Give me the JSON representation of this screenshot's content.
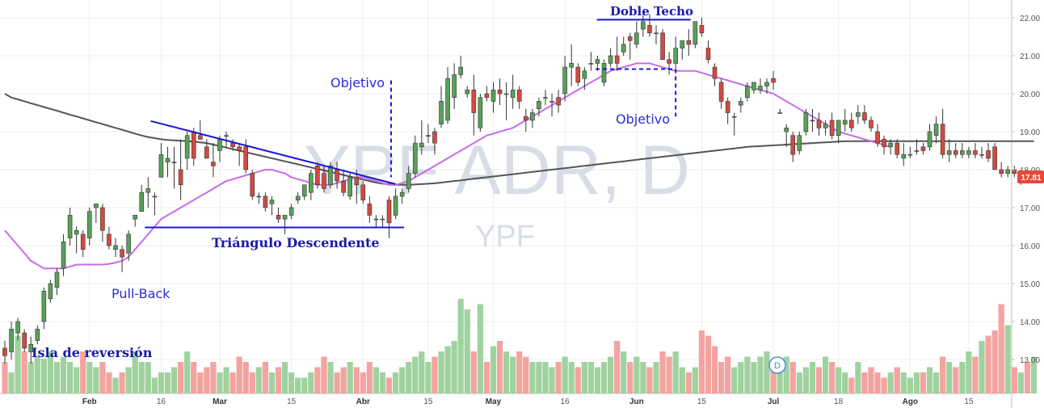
{
  "chart_data": {
    "type": "candlestick",
    "symbol_watermark": "YPF ADR, D",
    "exchange_watermark": "YPF",
    "y_axis": {
      "ticks": [
        "22.00",
        "21.00",
        "20.00",
        "19.00",
        "18.00",
        "17.00",
        "16.00",
        "15.00",
        "14.00",
        "13.00"
      ],
      "range": [
        12.2,
        22.3
      ]
    },
    "x_axis": {
      "labels": [
        {
          "text": "Feb",
          "i": 13,
          "bold": true
        },
        {
          "text": "16",
          "i": 24,
          "bold": false
        },
        {
          "text": "Mar",
          "i": 33,
          "bold": true
        },
        {
          "text": "15",
          "i": 44,
          "bold": false
        },
        {
          "text": "Abr",
          "i": 55,
          "bold": true
        },
        {
          "text": "15",
          "i": 65,
          "bold": false
        },
        {
          "text": "May",
          "i": 75,
          "bold": true
        },
        {
          "text": "16",
          "i": 86,
          "bold": false
        },
        {
          "text": "Jun",
          "i": 97,
          "bold": true
        },
        {
          "text": "15",
          "i": 107,
          "bold": false
        },
        {
          "text": "Jul",
          "i": 118,
          "bold": true
        },
        {
          "text": "18",
          "i": 128,
          "bold": false
        },
        {
          "text": "Ago",
          "i": 139,
          "bold": true
        },
        {
          "text": "15",
          "i": 148,
          "bold": false
        }
      ]
    },
    "last_price": "17.81",
    "candles": [
      [
        13.3,
        13.5,
        12.9,
        13.1
      ],
      [
        13.2,
        14.0,
        13.0,
        13.8
      ],
      [
        13.7,
        14.1,
        13.5,
        14.0
      ],
      [
        13.7,
        13.8,
        13.2,
        13.3
      ],
      [
        13.2,
        13.6,
        12.9,
        13.4
      ],
      [
        13.5,
        13.9,
        13.4,
        13.8
      ],
      [
        14.0,
        14.9,
        13.8,
        14.8
      ],
      [
        14.6,
        15.1,
        14.5,
        15.0
      ],
      [
        14.9,
        15.4,
        14.7,
        15.3
      ],
      [
        15.4,
        16.3,
        15.2,
        16.1
      ],
      [
        16.2,
        17.0,
        16.0,
        16.8
      ],
      [
        16.3,
        16.5,
        15.8,
        16.4
      ],
      [
        16.3,
        16.4,
        15.7,
        15.9
      ],
      [
        16.2,
        17.0,
        16.0,
        16.9
      ],
      [
        17.0,
        17.1,
        16.6,
        17.1
      ],
      [
        17.0,
        17.1,
        16.1,
        16.4
      ],
      [
        16.3,
        16.5,
        15.9,
        16.0
      ],
      [
        15.9,
        16.2,
        15.7,
        16.0
      ],
      [
        15.9,
        16.0,
        15.3,
        15.7
      ],
      [
        15.8,
        16.4,
        15.6,
        16.3
      ],
      [
        16.7,
        16.8,
        16.5,
        16.8
      ],
      [
        16.9,
        17.6,
        16.9,
        17.4
      ],
      [
        17.4,
        17.8,
        17.0,
        17.5
      ],
      [
        17.3,
        17.4,
        16.8,
        17.3
      ],
      [
        17.8,
        18.7,
        17.8,
        18.4
      ],
      [
        18.2,
        18.6,
        17.8,
        18.3
      ],
      [
        18.2,
        18.6,
        17.5,
        18.2
      ],
      [
        18.0,
        18.8,
        17.2,
        17.6
      ],
      [
        18.3,
        19.0,
        18.0,
        18.9
      ],
      [
        19.0,
        19.1,
        18.1,
        18.3
      ],
      [
        18.9,
        19.3,
        18.8,
        18.8
      ],
      [
        18.6,
        18.8,
        18.3,
        18.3
      ],
      [
        18.2,
        18.7,
        17.8,
        18.1
      ],
      [
        18.5,
        18.9,
        18.2,
        18.8
      ],
      [
        18.9,
        19.0,
        18.6,
        18.9
      ],
      [
        18.7,
        18.8,
        18.5,
        18.6
      ],
      [
        18.6,
        18.7,
        18.1,
        18.5
      ],
      [
        18.6,
        18.8,
        17.9,
        18.0
      ],
      [
        17.9,
        18.0,
        17.2,
        17.3
      ],
      [
        17.3,
        17.4,
        17.1,
        17.3
      ],
      [
        17.3,
        17.4,
        16.9,
        17.0
      ],
      [
        17.1,
        17.3,
        16.8,
        17.2
      ],
      [
        16.8,
        17.0,
        16.6,
        16.7
      ],
      [
        16.7,
        16.8,
        16.3,
        16.8
      ],
      [
        16.8,
        17.1,
        16.7,
        17.0
      ],
      [
        17.2,
        17.4,
        17.1,
        17.3
      ],
      [
        17.3,
        17.6,
        17.2,
        17.6
      ],
      [
        17.4,
        18.0,
        17.2,
        17.9
      ],
      [
        18.1,
        18.2,
        17.5,
        17.6
      ],
      [
        17.9,
        18.1,
        17.4,
        17.5
      ],
      [
        17.6,
        18.2,
        17.5,
        18.1
      ],
      [
        18.0,
        18.2,
        17.5,
        17.7
      ],
      [
        17.7,
        18.0,
        17.3,
        17.4
      ],
      [
        17.3,
        17.9,
        17.2,
        17.8
      ],
      [
        17.8,
        18.0,
        17.1,
        17.6
      ],
      [
        17.6,
        17.7,
        17.1,
        17.2
      ],
      [
        17.1,
        17.3,
        16.6,
        16.8
      ],
      [
        16.7,
        16.8,
        16.5,
        16.7
      ],
      [
        16.7,
        16.8,
        16.5,
        16.7
      ],
      [
        17.2,
        17.3,
        16.2,
        16.6
      ],
      [
        16.8,
        17.5,
        16.7,
        17.3
      ],
      [
        17.3,
        17.5,
        17.1,
        17.4
      ],
      [
        17.5,
        18.1,
        17.4,
        17.9
      ],
      [
        17.9,
        18.9,
        17.8,
        18.7
      ],
      [
        18.6,
        19.3,
        18.4,
        18.7
      ],
      [
        18.9,
        19.2,
        18.7,
        18.9
      ],
      [
        19.0,
        19.1,
        18.4,
        18.7
      ],
      [
        19.2,
        20.2,
        19.1,
        19.8
      ],
      [
        19.3,
        20.7,
        19.2,
        20.4
      ],
      [
        19.9,
        20.8,
        19.6,
        20.5
      ],
      [
        20.5,
        21.0,
        20.4,
        20.7
      ],
      [
        20.0,
        20.2,
        19.9,
        20.1
      ],
      [
        20.1,
        20.5,
        18.9,
        19.5
      ],
      [
        19.1,
        20.0,
        19.0,
        19.9
      ],
      [
        20.0,
        20.2,
        19.8,
        19.9
      ],
      [
        19.8,
        20.3,
        19.5,
        20.1
      ],
      [
        20.1,
        20.4,
        19.7,
        20.0
      ],
      [
        20.0,
        20.3,
        19.3,
        20.0
      ],
      [
        19.9,
        20.5,
        19.6,
        20.1
      ],
      [
        20.1,
        20.2,
        19.6,
        19.8
      ],
      [
        19.4,
        19.6,
        19.0,
        19.3
      ],
      [
        19.3,
        19.6,
        19.1,
        19.5
      ],
      [
        19.6,
        19.9,
        19.4,
        19.8
      ],
      [
        19.9,
        20.1,
        19.7,
        19.9
      ],
      [
        19.8,
        20.0,
        19.4,
        19.8
      ],
      [
        19.9,
        20.1,
        19.5,
        19.7
      ],
      [
        20.0,
        21.0,
        19.8,
        20.7
      ],
      [
        20.7,
        21.3,
        20.2,
        20.8
      ],
      [
        20.7,
        20.8,
        20.2,
        20.3
      ],
      [
        20.4,
        20.7,
        20.1,
        20.6
      ],
      [
        20.8,
        21.1,
        20.6,
        20.8
      ],
      [
        20.8,
        21.0,
        20.6,
        20.9
      ],
      [
        20.3,
        20.9,
        20.2,
        20.8
      ],
      [
        20.8,
        21.2,
        20.7,
        21.0
      ],
      [
        21.0,
        21.5,
        20.6,
        20.8
      ],
      [
        21.1,
        21.5,
        21.0,
        21.3
      ],
      [
        21.5,
        21.6,
        20.9,
        21.4
      ],
      [
        21.3,
        21.9,
        21.2,
        21.6
      ],
      [
        21.7,
        22.1,
        21.5,
        21.9
      ],
      [
        21.8,
        22.1,
        21.5,
        21.6
      ],
      [
        21.6,
        21.8,
        21.3,
        21.6
      ],
      [
        21.6,
        21.7,
        20.9,
        20.9
      ],
      [
        20.9,
        21.1,
        20.5,
        20.8
      ],
      [
        20.8,
        21.5,
        20.6,
        21.2
      ],
      [
        21.2,
        21.4,
        20.9,
        21.4
      ],
      [
        21.4,
        21.7,
        21.0,
        21.3
      ],
      [
        21.3,
        21.9,
        21.2,
        21.9
      ],
      [
        21.8,
        22.0,
        21.5,
        21.6
      ],
      [
        21.2,
        21.4,
        20.8,
        20.9
      ],
      [
        20.7,
        20.8,
        20.2,
        20.4
      ],
      [
        20.3,
        20.4,
        19.6,
        19.8
      ],
      [
        19.8,
        19.9,
        19.2,
        19.5
      ],
      [
        19.4,
        19.5,
        18.9,
        19.4
      ],
      [
        19.7,
        19.9,
        19.5,
        19.8
      ],
      [
        19.9,
        20.3,
        19.8,
        20.2
      ],
      [
        20.1,
        20.3,
        20.0,
        20.3
      ],
      [
        20.1,
        20.4,
        20.0,
        20.2
      ],
      [
        20.2,
        20.4,
        20.0,
        20.3
      ],
      [
        20.4,
        20.6,
        20.1,
        20.3
      ],
      [
        19.5,
        19.6,
        19.5,
        19.5
      ],
      [
        19.0,
        19.2,
        18.6,
        19.1
      ],
      [
        18.9,
        19.0,
        18.2,
        18.4
      ],
      [
        18.5,
        19.0,
        18.4,
        18.9
      ],
      [
        19.0,
        19.6,
        18.9,
        19.5
      ],
      [
        19.3,
        19.6,
        19.0,
        19.3
      ],
      [
        19.3,
        19.5,
        18.9,
        19.1
      ],
      [
        19.1,
        19.3,
        18.9,
        19.2
      ],
      [
        19.3,
        19.5,
        18.8,
        18.9
      ],
      [
        18.9,
        19.3,
        18.7,
        19.3
      ],
      [
        19.2,
        19.6,
        19.0,
        19.3
      ],
      [
        19.3,
        19.5,
        19.0,
        19.1
      ],
      [
        19.4,
        19.7,
        19.2,
        19.5
      ],
      [
        19.5,
        19.7,
        19.2,
        19.3
      ],
      [
        19.3,
        19.4,
        19.0,
        19.1
      ],
      [
        19.0,
        19.2,
        18.6,
        18.7
      ],
      [
        18.8,
        18.9,
        18.4,
        18.6
      ],
      [
        18.6,
        18.8,
        18.4,
        18.7
      ],
      [
        18.7,
        18.8,
        18.3,
        18.4
      ],
      [
        18.3,
        18.7,
        18.1,
        18.4
      ],
      [
        18.4,
        18.6,
        18.3,
        18.4
      ],
      [
        18.5,
        18.8,
        18.4,
        18.5
      ],
      [
        18.6,
        18.7,
        18.4,
        18.5
      ],
      [
        18.6,
        19.2,
        18.5,
        19.0
      ],
      [
        18.9,
        19.4,
        18.7,
        19.2
      ],
      [
        19.2,
        19.6,
        18.3,
        18.4
      ],
      [
        18.4,
        18.8,
        18.2,
        18.5
      ],
      [
        18.5,
        18.7,
        18.3,
        18.4
      ],
      [
        18.4,
        18.7,
        18.3,
        18.5
      ],
      [
        18.4,
        18.6,
        18.3,
        18.5
      ],
      [
        18.5,
        18.7,
        18.3,
        18.4
      ],
      [
        18.4,
        18.6,
        18.3,
        18.4
      ],
      [
        18.5,
        18.7,
        18.2,
        18.3
      ],
      [
        18.6,
        18.7,
        18.1,
        18.0
      ],
      [
        18.0,
        18.2,
        17.8,
        17.9
      ],
      [
        17.9,
        18.1,
        17.8,
        18.0
      ],
      [
        18.0,
        18.1,
        17.8,
        17.9
      ],
      [
        17.8,
        18.0,
        17.6,
        17.9
      ],
      [
        17.9,
        18.0,
        17.7,
        17.8
      ]
    ],
    "volumes": [
      0.3,
      0.2,
      0.55,
      0.4,
      0.3,
      0.35,
      0.33,
      0.4,
      0.3,
      0.35,
      0.3,
      0.25,
      0.4,
      0.3,
      0.25,
      0.3,
      0.2,
      0.15,
      0.2,
      0.25,
      0.4,
      0.3,
      0.3,
      0.15,
      0.2,
      0.2,
      0.25,
      0.3,
      0.4,
      0.3,
      0.2,
      0.25,
      0.3,
      0.2,
      0.25,
      0.2,
      0.35,
      0.3,
      0.2,
      0.25,
      0.3,
      0.2,
      0.25,
      0.3,
      0.2,
      0.15,
      0.15,
      0.2,
      0.25,
      0.35,
      0.3,
      0.2,
      0.25,
      0.3,
      0.25,
      0.2,
      0.3,
      0.25,
      0.2,
      0.15,
      0.2,
      0.25,
      0.3,
      0.35,
      0.4,
      0.3,
      0.35,
      0.4,
      0.45,
      0.5,
      0.9,
      0.8,
      0.4,
      0.85,
      0.3,
      0.45,
      0.5,
      0.4,
      0.35,
      0.4,
      0.35,
      0.3,
      0.3,
      0.3,
      0.25,
      0.3,
      0.35,
      0.3,
      0.25,
      0.3,
      0.3,
      0.25,
      0.3,
      0.35,
      0.5,
      0.4,
      0.3,
      0.35,
      0.3,
      0.25,
      0.3,
      0.4,
      0.35,
      0.4,
      0.25,
      0.2,
      0.25,
      0.6,
      0.55,
      0.45,
      0.3,
      0.35,
      0.25,
      0.3,
      0.35,
      0.3,
      0.35,
      0.4,
      0.3,
      0.25,
      0.35,
      0.3,
      0.2,
      0.25,
      0.3,
      0.25,
      0.35,
      0.3,
      0.25,
      0.2,
      0.15,
      0.3,
      0.2,
      0.25,
      0.2,
      0.15,
      0.2,
      0.25,
      0.2,
      0.15,
      0.2,
      0.2,
      0.25,
      0.2,
      0.35,
      0.3,
      0.25,
      0.3,
      0.4,
      0.35,
      0.5,
      0.55,
      0.6,
      0.85,
      0.65,
      0.25,
      0.2,
      0.3,
      0.35
    ],
    "sma_long": [
      20.0,
      19.9,
      19.85,
      19.8,
      19.75,
      19.7,
      19.65,
      19.6,
      19.55,
      19.5,
      19.45,
      19.4,
      19.35,
      19.3,
      19.25,
      19.2,
      19.15,
      19.1,
      19.05,
      19.0,
      18.95,
      18.9,
      18.86,
      18.83,
      18.8,
      18.78,
      18.77,
      18.76,
      18.75,
      18.74,
      18.72,
      18.7,
      18.66,
      18.62,
      18.58,
      18.54,
      18.5,
      18.46,
      18.42,
      18.38,
      18.34,
      18.3,
      18.26,
      18.22,
      18.18,
      18.14,
      18.1,
      18.06,
      18.02,
      17.98,
      17.94,
      17.9,
      17.86,
      17.82,
      17.78,
      17.74,
      17.7,
      17.66,
      17.63,
      17.62,
      17.6,
      17.6,
      17.6,
      17.61,
      17.62,
      17.63,
      17.64,
      17.66,
      17.68,
      17.7,
      17.72,
      17.74,
      17.76,
      17.78,
      17.8,
      17.82,
      17.84,
      17.86,
      17.88,
      17.9,
      17.92,
      17.94,
      17.96,
      17.98,
      18.0,
      18.02,
      18.04,
      18.06,
      18.08,
      18.1,
      18.12,
      18.14,
      18.16,
      18.18,
      18.2,
      18.22,
      18.24,
      18.26,
      18.28,
      18.3,
      18.32,
      18.34,
      18.36,
      18.38,
      18.4,
      18.42,
      18.44,
      18.46,
      18.48,
      18.5,
      18.52,
      18.54,
      18.56,
      18.58,
      18.6,
      18.61,
      18.62,
      18.63,
      18.64,
      18.65,
      18.66,
      18.67,
      18.68,
      18.69,
      18.7,
      18.71,
      18.72,
      18.73,
      18.74,
      18.75,
      18.75,
      18.75,
      18.75,
      18.75,
      18.75,
      18.75,
      18.75,
      18.75,
      18.75,
      18.75,
      18.75,
      18.75,
      18.75,
      18.75,
      18.75,
      18.75,
      18.75,
      18.75,
      18.75,
      18.75,
      18.75,
      18.75,
      18.75,
      18.75,
      18.75,
      18.75,
      18.75,
      18.75,
      18.75
    ],
    "sma_short": [
      16.4,
      16.2,
      16.0,
      15.8,
      15.6,
      15.5,
      15.4,
      15.4,
      15.4,
      15.4,
      15.45,
      15.5,
      15.5,
      15.5,
      15.5,
      15.5,
      15.52,
      15.55,
      15.6,
      15.7,
      15.9,
      16.1,
      16.3,
      16.5,
      16.7,
      16.8,
      16.9,
      17.0,
      17.1,
      17.2,
      17.3,
      17.4,
      17.5,
      17.6,
      17.7,
      17.75,
      17.8,
      17.85,
      17.9,
      17.95,
      18.0,
      18.0,
      17.95,
      17.9,
      17.8,
      17.75,
      17.7,
      17.65,
      17.6,
      17.6,
      17.6,
      17.65,
      17.7,
      17.75,
      17.8,
      17.8,
      17.75,
      17.7,
      17.65,
      17.6,
      17.6,
      17.65,
      17.7,
      17.8,
      17.9,
      18.0,
      18.1,
      18.2,
      18.3,
      18.4,
      18.5,
      18.6,
      18.7,
      18.8,
      18.9,
      18.95,
      19.0,
      19.05,
      19.1,
      19.2,
      19.3,
      19.4,
      19.5,
      19.6,
      19.7,
      19.8,
      19.9,
      20.0,
      20.1,
      20.2,
      20.3,
      20.4,
      20.5,
      20.6,
      20.65,
      20.7,
      20.75,
      20.8,
      20.8,
      20.8,
      20.75,
      20.7,
      20.65,
      20.6,
      20.6,
      20.6,
      20.6,
      20.55,
      20.5,
      20.45,
      20.4,
      20.35,
      20.3,
      20.25,
      20.2,
      20.15,
      20.1,
      20.05,
      20.0,
      19.9,
      19.8,
      19.7,
      19.6,
      19.5,
      19.4,
      19.3,
      19.2,
      19.1,
      19.0,
      18.95,
      18.9,
      18.85,
      18.8,
      18.75,
      18.7,
      18.65,
      18.6
    ]
  },
  "annotations": {
    "isla": "Isla de reversión",
    "pullback": "Pull-Back",
    "triangulo": "Triángulo Descendente",
    "objetivo_1": "Objetivo",
    "objetivo_2": "Objetivo",
    "doble_techo": "Doble Techo",
    "dividend_marker": "D"
  },
  "colors": {
    "up": "#58a158",
    "down": "#d34a40",
    "vol_up": "#9fd29f",
    "vol_down": "#f3a3a0",
    "sma_short": "#c86ce8",
    "sma_long": "#555555",
    "trend_lines": "#1818d6",
    "price_tag": "#e8483c"
  }
}
